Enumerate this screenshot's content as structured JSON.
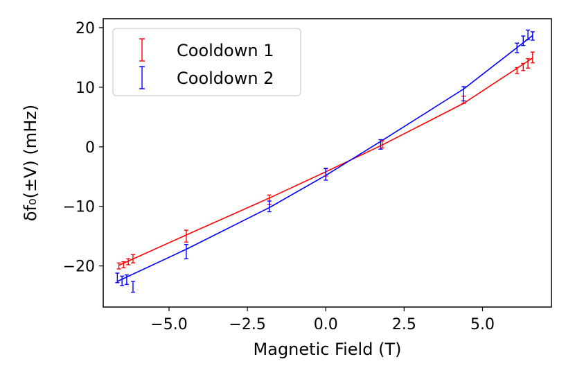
{
  "chart_data": {
    "type": "scatter",
    "xlabel": "Magnetic Field (T)",
    "ylabel": "δf₀(±V) (mHz)",
    "xlim": [
      -7.1,
      7.2
    ],
    "ylim": [
      -26.9,
      21.5
    ],
    "xticks": [
      -5.0,
      -2.5,
      0.0,
      2.5,
      5.0
    ],
    "xtick_labels": [
      "−5.0",
      "−2.5",
      "0.0",
      "2.5",
      "5.0"
    ],
    "yticks": [
      -20,
      -10,
      0,
      10,
      20
    ],
    "ytick_labels": [
      "−20",
      "−10",
      "0",
      "10",
      "20"
    ],
    "legend_position": "top-left",
    "series": [
      {
        "name": "Cooldown 1",
        "color": "#ff0000",
        "points": [
          {
            "x": -6.6,
            "y": -20.0,
            "err": 0.5
          },
          {
            "x": -6.45,
            "y": -19.8,
            "err": 0.5
          },
          {
            "x": -6.3,
            "y": -19.3,
            "err": 0.5
          },
          {
            "x": -6.15,
            "y": -18.8,
            "err": 0.7
          },
          {
            "x": -4.45,
            "y": -15.0,
            "err": 1.0
          },
          {
            "x": -1.8,
            "y": -8.9,
            "err": 0.8
          },
          {
            "x": 0.0,
            "y": -4.3,
            "err": 0.6
          },
          {
            "x": 1.8,
            "y": 0.4,
            "err": 0.6
          },
          {
            "x": 4.4,
            "y": 7.9,
            "err": 0.6
          },
          {
            "x": 6.1,
            "y": 12.8,
            "err": 0.5
          },
          {
            "x": 6.3,
            "y": 13.4,
            "err": 0.6
          },
          {
            "x": 6.45,
            "y": 14.0,
            "err": 0.8
          },
          {
            "x": 6.6,
            "y": 15.0,
            "err": 0.9
          }
        ],
        "fit": {
          "x": [
            -6.6,
            -4.45,
            -1.8,
            0.0,
            1.8,
            4.4,
            6.6
          ],
          "y": [
            -19.9,
            -14.8,
            -8.6,
            -4.2,
            0.3,
            7.3,
            14.9
          ]
        }
      },
      {
        "name": "Cooldown 2",
        "color": "#0000ff",
        "points": [
          {
            "x": -6.65,
            "y": -22.0,
            "err": 0.8
          },
          {
            "x": -6.5,
            "y": -22.5,
            "err": 0.8
          },
          {
            "x": -6.35,
            "y": -22.3,
            "err": 0.8
          },
          {
            "x": -6.15,
            "y": -23.5,
            "err": 0.9
          },
          {
            "x": -4.45,
            "y": -17.6,
            "err": 1.2
          },
          {
            "x": -1.8,
            "y": -10.0,
            "err": 0.9
          },
          {
            "x": 0.0,
            "y": -4.6,
            "err": 1.0
          },
          {
            "x": 1.75,
            "y": 0.4,
            "err": 0.8
          },
          {
            "x": 4.4,
            "y": 8.9,
            "err": 1.2
          },
          {
            "x": 6.1,
            "y": 16.6,
            "err": 0.8
          },
          {
            "x": 6.3,
            "y": 17.8,
            "err": 0.8
          },
          {
            "x": 6.45,
            "y": 18.8,
            "err": 0.8
          },
          {
            "x": 6.6,
            "y": 18.6,
            "err": 0.7
          }
        ],
        "fit": {
          "x": [
            -6.65,
            -4.45,
            -1.8,
            0.0,
            1.75,
            4.4,
            6.6
          ],
          "y": [
            -22.6,
            -17.2,
            -10.2,
            -4.8,
            0.9,
            9.7,
            18.7
          ]
        }
      }
    ]
  }
}
